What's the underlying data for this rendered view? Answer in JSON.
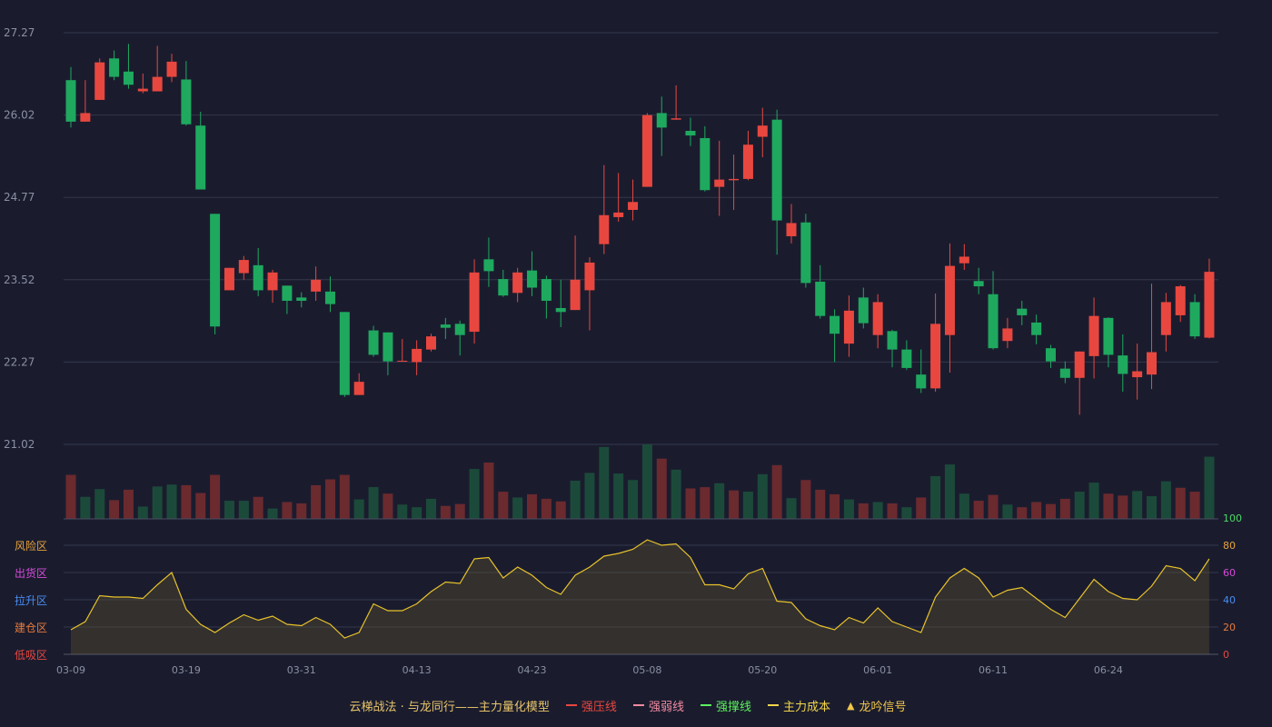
{
  "chart_data": [
    {
      "type": "candlestick",
      "ylim": [
        21.02,
        27.27
      ],
      "y_ticks": [
        "27.27",
        "26.02",
        "24.77",
        "23.52",
        "22.27",
        "21.02"
      ],
      "x_ticks": [
        "03-09",
        "03-19",
        "03-31",
        "04-13",
        "04-23",
        "05-08",
        "05-20",
        "06-01",
        "06-11",
        "06-24"
      ],
      "x_tick_index": [
        0,
        8,
        16,
        24,
        32,
        40,
        48,
        56,
        64,
        72
      ],
      "up_color": "#e8473f",
      "down_color": "#1fa95f",
      "grid": true,
      "candles": [
        [
          26.55,
          25.92,
          26.75,
          25.83
        ],
        [
          25.92,
          26.05,
          26.55,
          25.92
        ],
        [
          26.25,
          26.82,
          26.88,
          26.25
        ],
        [
          26.88,
          26.6,
          27.0,
          26.55
        ],
        [
          26.68,
          26.48,
          27.1,
          26.42
        ],
        [
          26.38,
          26.42,
          26.65,
          26.35
        ],
        [
          26.38,
          26.6,
          27.07,
          26.38
        ],
        [
          26.6,
          26.83,
          26.95,
          26.52
        ],
        [
          26.56,
          25.88,
          26.84,
          25.86
        ],
        [
          25.86,
          24.89,
          26.07,
          24.89
        ],
        [
          24.52,
          22.81,
          24.52,
          22.69
        ],
        [
          23.36,
          23.7,
          23.7,
          23.36
        ],
        [
          23.62,
          23.82,
          23.88,
          23.52
        ],
        [
          23.74,
          23.36,
          24.0,
          23.27
        ],
        [
          23.36,
          23.63,
          23.67,
          23.17
        ],
        [
          23.43,
          23.2,
          23.43,
          23.0
        ],
        [
          23.25,
          23.2,
          23.33,
          23.1
        ],
        [
          23.34,
          23.52,
          23.72,
          23.2
        ],
        [
          23.34,
          23.15,
          23.57,
          23.03
        ],
        [
          23.03,
          21.77,
          23.03,
          21.74
        ],
        [
          21.77,
          21.97,
          22.1,
          21.77
        ],
        [
          22.75,
          22.38,
          22.82,
          22.35
        ],
        [
          22.72,
          22.28,
          22.72,
          22.07
        ],
        [
          22.29,
          22.29,
          22.62,
          22.29
        ],
        [
          22.27,
          22.47,
          22.6,
          22.07
        ],
        [
          22.46,
          22.66,
          22.7,
          22.43
        ],
        [
          22.84,
          22.79,
          22.94,
          22.62
        ],
        [
          22.85,
          22.68,
          22.9,
          22.37
        ],
        [
          22.73,
          23.63,
          23.83,
          22.55
        ],
        [
          23.83,
          23.65,
          24.16,
          23.41
        ],
        [
          23.53,
          23.28,
          23.67,
          23.26
        ],
        [
          23.32,
          23.63,
          23.7,
          23.18
        ],
        [
          23.66,
          23.4,
          23.95,
          23.27
        ],
        [
          23.53,
          23.2,
          23.58,
          22.93
        ],
        [
          23.09,
          23.03,
          23.52,
          22.8
        ],
        [
          23.06,
          23.52,
          24.19,
          23.06
        ],
        [
          23.36,
          23.78,
          23.86,
          22.75
        ],
        [
          24.06,
          24.5,
          25.26,
          23.91
        ],
        [
          24.47,
          24.54,
          25.14,
          24.4
        ],
        [
          24.58,
          24.7,
          25.04,
          24.42
        ],
        [
          24.93,
          26.02,
          26.05,
          24.93
        ],
        [
          26.05,
          25.83,
          26.3,
          25.4
        ],
        [
          25.95,
          25.97,
          26.47,
          25.95
        ],
        [
          25.78,
          25.71,
          25.98,
          25.55
        ],
        [
          25.67,
          24.88,
          25.85,
          24.86
        ],
        [
          24.93,
          25.04,
          25.63,
          24.49
        ],
        [
          25.03,
          25.05,
          25.42,
          24.58
        ],
        [
          25.05,
          25.57,
          25.78,
          25.03
        ],
        [
          25.69,
          25.86,
          26.13,
          25.38
        ],
        [
          25.95,
          24.42,
          26.1,
          23.9
        ],
        [
          24.18,
          24.38,
          24.67,
          24.07
        ],
        [
          24.39,
          23.47,
          24.52,
          23.4
        ],
        [
          23.49,
          22.97,
          23.74,
          22.93
        ],
        [
          22.97,
          22.7,
          23.07,
          22.27
        ],
        [
          22.55,
          23.05,
          23.28,
          22.35
        ],
        [
          23.25,
          22.86,
          23.4,
          22.78
        ],
        [
          22.68,
          23.18,
          23.3,
          22.48
        ],
        [
          22.74,
          22.46,
          22.76,
          22.19
        ],
        [
          22.46,
          22.18,
          22.6,
          22.15
        ],
        [
          22.08,
          21.87,
          22.46,
          21.8
        ],
        [
          21.87,
          22.85,
          23.31,
          21.82
        ],
        [
          22.68,
          23.73,
          24.07,
          22.11
        ],
        [
          23.77,
          23.87,
          24.06,
          23.67
        ],
        [
          23.5,
          23.42,
          23.7,
          23.3
        ],
        [
          23.3,
          22.48,
          23.65,
          22.46
        ],
        [
          22.59,
          22.78,
          22.94,
          22.48
        ],
        [
          23.08,
          22.98,
          23.2,
          22.83
        ],
        [
          22.87,
          22.68,
          22.99,
          22.54
        ],
        [
          22.48,
          22.28,
          22.53,
          22.18
        ],
        [
          22.17,
          22.03,
          22.28,
          21.95
        ],
        [
          22.03,
          22.43,
          22.43,
          21.47
        ],
        [
          22.36,
          22.97,
          23.25,
          22.02
        ],
        [
          22.94,
          22.38,
          22.95,
          22.19
        ],
        [
          22.37,
          22.09,
          22.69,
          21.82
        ],
        [
          22.04,
          22.13,
          22.55,
          21.7
        ],
        [
          22.08,
          22.42,
          23.46,
          21.86
        ],
        [
          22.68,
          23.18,
          23.32,
          22.43
        ],
        [
          22.98,
          23.42,
          23.44,
          22.88
        ],
        [
          23.18,
          22.66,
          23.3,
          22.62
        ],
        [
          22.64,
          23.64,
          23.84,
          22.63
        ]
      ],
      "volume_colors": [
        "up",
        "down"
      ],
      "volume": [
        [
          6.8,
          1
        ],
        [
          3.4,
          0
        ],
        [
          4.6,
          0
        ],
        [
          2.9,
          1
        ],
        [
          4.5,
          1
        ],
        [
          1.9,
          0
        ],
        [
          5.0,
          0
        ],
        [
          5.3,
          0
        ],
        [
          5.2,
          1
        ],
        [
          4.0,
          1
        ],
        [
          6.8,
          1
        ],
        [
          2.8,
          0
        ],
        [
          2.8,
          0
        ],
        [
          3.4,
          1
        ],
        [
          1.6,
          0
        ],
        [
          2.6,
          1
        ],
        [
          2.4,
          1
        ],
        [
          5.2,
          1
        ],
        [
          6.1,
          1
        ],
        [
          6.8,
          1
        ],
        [
          3.0,
          0
        ],
        [
          4.9,
          0
        ],
        [
          3.9,
          1
        ],
        [
          2.2,
          0
        ],
        [
          1.8,
          0
        ],
        [
          3.1,
          0
        ],
        [
          2.0,
          1
        ],
        [
          2.3,
          1
        ],
        [
          7.7,
          0
        ],
        [
          8.7,
          1
        ],
        [
          4.2,
          1
        ],
        [
          3.3,
          0
        ],
        [
          3.8,
          1
        ],
        [
          3.1,
          1
        ],
        [
          2.7,
          1
        ],
        [
          5.9,
          0
        ],
        [
          7.1,
          0
        ],
        [
          11.1,
          0
        ],
        [
          7.0,
          0
        ],
        [
          6.0,
          0
        ],
        [
          11.5,
          0
        ],
        [
          9.3,
          1
        ],
        [
          7.6,
          0
        ],
        [
          4.7,
          1
        ],
        [
          4.9,
          1
        ],
        [
          5.5,
          0
        ],
        [
          4.4,
          1
        ],
        [
          4.2,
          0
        ],
        [
          6.9,
          0
        ],
        [
          8.3,
          1
        ],
        [
          3.2,
          0
        ],
        [
          6.0,
          1
        ],
        [
          4.5,
          1
        ],
        [
          3.8,
          1
        ],
        [
          3.0,
          0
        ],
        [
          2.4,
          1
        ],
        [
          2.6,
          0
        ],
        [
          2.4,
          1
        ],
        [
          1.8,
          0
        ],
        [
          3.3,
          1
        ],
        [
          6.6,
          0
        ],
        [
          8.4,
          0
        ],
        [
          3.9,
          0
        ],
        [
          2.8,
          1
        ],
        [
          3.7,
          1
        ],
        [
          2.2,
          0
        ],
        [
          1.8,
          1
        ],
        [
          2.6,
          1
        ],
        [
          2.3,
          1
        ],
        [
          3.1,
          1
        ],
        [
          4.2,
          0
        ],
        [
          5.6,
          0
        ],
        [
          3.9,
          1
        ],
        [
          3.6,
          1
        ],
        [
          4.3,
          0
        ],
        [
          3.5,
          0
        ],
        [
          5.8,
          0
        ],
        [
          4.8,
          1
        ],
        [
          4.2,
          1
        ],
        [
          9.6,
          0
        ]
      ]
    },
    {
      "type": "area",
      "ylim": [
        0,
        100
      ],
      "y_ticks": [
        "100",
        "80",
        "60",
        "40",
        "20",
        "0"
      ],
      "y_tick_colors": [
        "#4cd964",
        "#e8a33a",
        "#d64ad8",
        "#4a8cf0",
        "#e87a3a",
        "#e8473f"
      ],
      "zone_labels": [
        "风险区",
        "出货区",
        "拉升区",
        "建仓区",
        "低吸区"
      ],
      "zone_colors": [
        "#e8a33a",
        "#d64ad8",
        "#4a8cf0",
        "#e87a3a",
        "#e8473f"
      ],
      "line_color": "#e8c22a",
      "values": [
        18,
        24,
        43,
        42,
        42,
        41,
        51,
        60,
        33,
        22,
        16,
        23,
        29,
        25,
        28,
        22,
        21,
        27,
        22,
        12,
        16,
        37,
        32,
        32,
        37,
        46,
        53,
        52,
        70,
        71,
        56,
        64,
        58,
        49,
        44,
        58,
        64,
        72,
        74,
        77,
        84,
        80,
        81,
        71,
        51,
        51,
        48,
        59,
        63,
        39,
        38,
        26,
        21,
        18,
        27,
        23,
        34,
        24,
        20,
        16,
        42,
        56,
        63,
        56,
        42,
        47,
        49,
        41,
        33,
        27,
        41,
        55,
        46,
        41,
        40,
        50,
        65,
        63,
        54,
        70
      ]
    }
  ],
  "legend": {
    "title": "云梯战法 · 与龙同行——主力量化模型",
    "items": [
      {
        "label": "强压线",
        "color": "#e8473f",
        "style": "solid"
      },
      {
        "label": "强弱线",
        "color": "#f08aa0",
        "style": "dashed"
      },
      {
        "label": "强撑线",
        "color": "#5cf25c",
        "style": "solid"
      },
      {
        "label": "主力成本",
        "color": "#f2d64a",
        "style": "dashed"
      },
      {
        "label": "龙吟信号",
        "color": "#f2c64a",
        "style": "triangle"
      }
    ]
  }
}
